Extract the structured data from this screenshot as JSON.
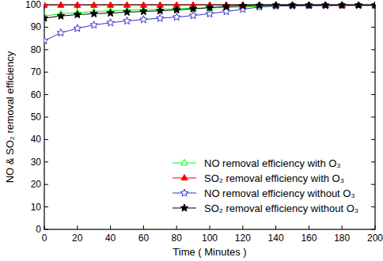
{
  "chart_data": {
    "type": "line",
    "x_label": "Time ( Minutes )",
    "y_label": "NO & SO₂ removal efficiency",
    "x": [
      0,
      10,
      20,
      30,
      40,
      50,
      60,
      70,
      80,
      90,
      100,
      110,
      120,
      130,
      140,
      150,
      160,
      170,
      180,
      190,
      200
    ],
    "series": [
      {
        "name": "NO  removal efficiency with O₃",
        "color": "#00ff00",
        "marker": "triangle-open",
        "line_style": "solid",
        "values": [
          95,
          96,
          96.5,
          97,
          97.3,
          97.6,
          97.8,
          98,
          98.2,
          98.4,
          98.6,
          98.8,
          99,
          99.3,
          99.5,
          99.6,
          99.7,
          99.8,
          99.8,
          99.9,
          99.9
        ]
      },
      {
        "name": "SO₂ removal efficiency with O₃",
        "color": "#ff0000",
        "marker": "triangle",
        "line_style": "solid",
        "values": [
          99.8,
          99.8,
          99.8,
          99.8,
          99.8,
          99.8,
          99.8,
          99.8,
          99.8,
          99.8,
          99.8,
          99.8,
          99.8,
          99.8,
          99.8,
          99.8,
          99.8,
          99.8,
          99.8,
          99.8,
          99.8
        ]
      },
      {
        "name": "NO  removal efficiency without O₃",
        "color": "#3333cc",
        "marker": "star-open",
        "line_style": "solid",
        "values": [
          84,
          87.5,
          89.5,
          91,
          92,
          92.8,
          93.4,
          94,
          94.5,
          95.2,
          96,
          97,
          98,
          99,
          99.4,
          99.5,
          99.6,
          99.6,
          99.7,
          99.7,
          99.7
        ]
      },
      {
        "name": "SO₂ removal efficiency without O₃",
        "color": "#000000",
        "marker": "star",
        "line_style": "solid",
        "values": [
          94,
          95,
          95.6,
          96,
          96.3,
          96.7,
          97,
          97.3,
          97.7,
          98.2,
          98.7,
          99.2,
          99.5,
          99.7,
          99.8,
          99.8,
          99.8,
          99.8,
          99.8,
          99.8,
          99.8
        ]
      }
    ],
    "xlim": [
      0,
      200
    ],
    "xticks": [
      0,
      20,
      40,
      60,
      80,
      100,
      120,
      140,
      160,
      180,
      200
    ],
    "ylim": [
      0,
      100
    ],
    "yticks": [
      0,
      10,
      20,
      30,
      40,
      50,
      60,
      70,
      80,
      90,
      100
    ],
    "grid": false,
    "legend": "lower right"
  }
}
